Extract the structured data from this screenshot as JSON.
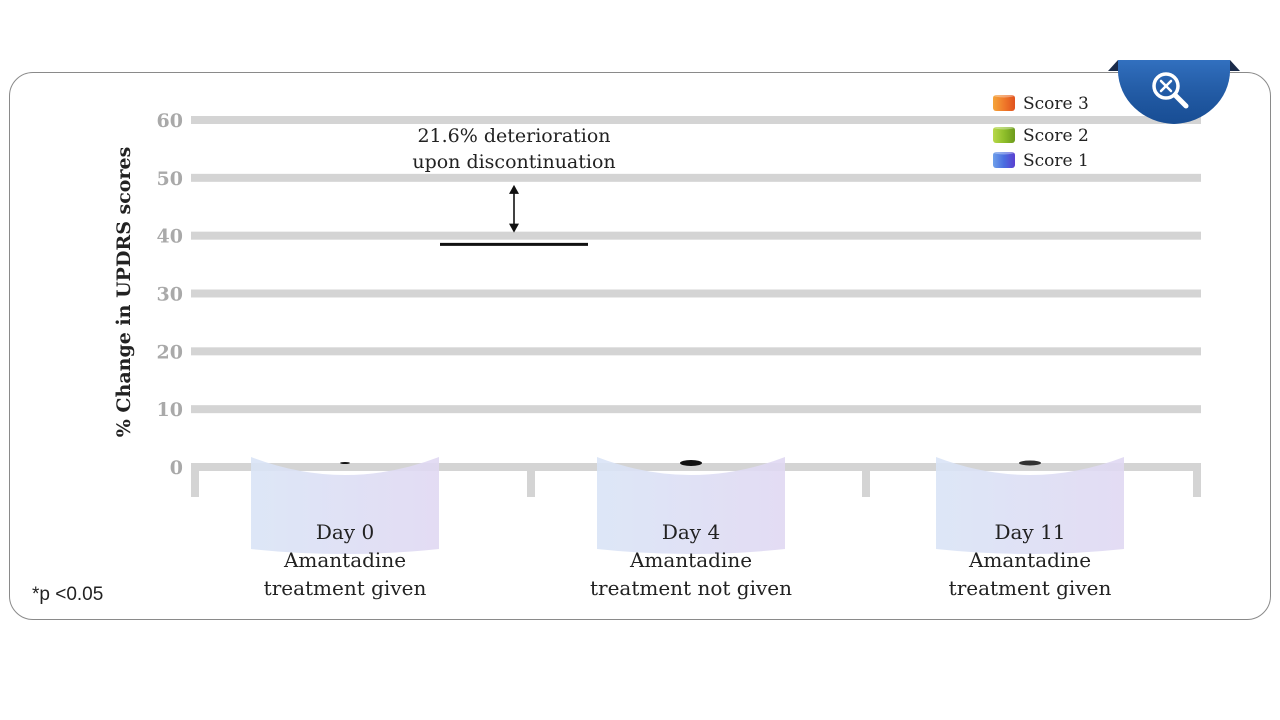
{
  "colors": {
    "gridline": "#d4d4d4",
    "tick_text": "#a9a9a9",
    "score3": "#f07a2a",
    "score2": "#8fbf2a",
    "score1": "#4a6ee0",
    "cylinder": "#d8ddf4",
    "zoom_badge": "#1f5aa6"
  },
  "zoom_button": {
    "icon": "zoom-search-icon"
  },
  "footnote": "*p <0.05",
  "chart_data": {
    "type": "bar",
    "title": "",
    "ylabel": "% Change in UPDRS scores",
    "xlabel": "",
    "ylim": [
      0,
      60
    ],
    "yticks": [
      "60",
      "50",
      "40",
      "30",
      "20",
      "10",
      "0"
    ],
    "grid": true,
    "legend_position": "top-right",
    "categories": [
      {
        "lines": [
          "Day 0",
          "Amantadine",
          "treatment given"
        ]
      },
      {
        "lines": [
          "Day 4",
          "Amantadine",
          "treatment not given"
        ]
      },
      {
        "lines": [
          "Day 11",
          "Amantadine",
          "treatment given"
        ]
      }
    ],
    "series": [
      {
        "name": "Score 3",
        "values": [
          0,
          0,
          0
        ]
      },
      {
        "name": "Score 2",
        "values": [
          0,
          0,
          0
        ]
      },
      {
        "name": "Score 1",
        "values": [
          0,
          0,
          0
        ]
      }
    ],
    "annotation": {
      "lines": [
        "21.6% deterioration",
        "upon discontinuation"
      ],
      "reference_value": 38.5,
      "arrow_from": 50,
      "arrow_to": 40
    }
  }
}
